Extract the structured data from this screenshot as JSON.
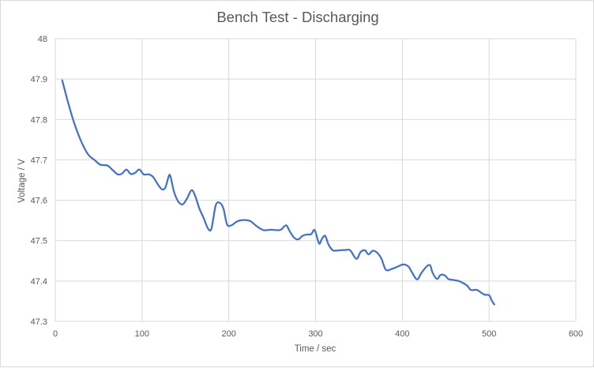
{
  "chart_data": {
    "type": "line",
    "title": "Bench Test - Discharging",
    "xlabel": "Time / sec",
    "ylabel": "Voltage / V",
    "xlim": [
      0,
      600
    ],
    "ylim": [
      47.3,
      48
    ],
    "xticks": [
      0,
      100,
      200,
      300,
      400,
      500,
      600
    ],
    "yticks": [
      47.3,
      47.4,
      47.5,
      47.6,
      47.7,
      47.8,
      47.9,
      48
    ],
    "x_tick_labels": [
      "0",
      "100",
      "200",
      "300",
      "400",
      "500",
      "600"
    ],
    "y_tick_labels": [
      "47.3",
      "47.4",
      "47.5",
      "47.6",
      "47.7",
      "47.8",
      "47.9",
      "48"
    ],
    "grid": "vertical and horizontal",
    "legend": "none",
    "colors": {
      "series": "#4472c4",
      "grid": "#d9d9d9",
      "text": "#595959"
    },
    "series": [
      {
        "values": [
          [
            8,
            47.897
          ],
          [
            15,
            47.84
          ],
          [
            22,
            47.79
          ],
          [
            30,
            47.745
          ],
          [
            38,
            47.713
          ],
          [
            45,
            47.7
          ],
          [
            52,
            47.688
          ],
          [
            60,
            47.686
          ],
          [
            66,
            47.675
          ],
          [
            72,
            47.664
          ],
          [
            77,
            47.666
          ],
          [
            82,
            47.676
          ],
          [
            87,
            47.665
          ],
          [
            92,
            47.668
          ],
          [
            97,
            47.676
          ],
          [
            102,
            47.664
          ],
          [
            108,
            47.664
          ],
          [
            113,
            47.657
          ],
          [
            118,
            47.64
          ],
          [
            123,
            47.627
          ],
          [
            127,
            47.632
          ],
          [
            131,
            47.661
          ],
          [
            133,
            47.657
          ],
          [
            137,
            47.62
          ],
          [
            142,
            47.596
          ],
          [
            147,
            47.59
          ],
          [
            152,
            47.605
          ],
          [
            157,
            47.625
          ],
          [
            161,
            47.612
          ],
          [
            166,
            47.58
          ],
          [
            171,
            47.556
          ],
          [
            176,
            47.53
          ],
          [
            180,
            47.53
          ],
          [
            185,
            47.588
          ],
          [
            190,
            47.593
          ],
          [
            194,
            47.578
          ],
          [
            198,
            47.54
          ],
          [
            203,
            47.538
          ],
          [
            210,
            47.548
          ],
          [
            218,
            47.551
          ],
          [
            225,
            47.548
          ],
          [
            232,
            47.536
          ],
          [
            240,
            47.526
          ],
          [
            248,
            47.527
          ],
          [
            255,
            47.526
          ],
          [
            260,
            47.527
          ],
          [
            266,
            47.538
          ],
          [
            270,
            47.524
          ],
          [
            275,
            47.508
          ],
          [
            280,
            47.503
          ],
          [
            285,
            47.512
          ],
          [
            290,
            47.515
          ],
          [
            295,
            47.516
          ],
          [
            299,
            47.526
          ],
          [
            304,
            47.493
          ],
          [
            307,
            47.503
          ],
          [
            311,
            47.512
          ],
          [
            315,
            47.49
          ],
          [
            320,
            47.476
          ],
          [
            327,
            47.476
          ],
          [
            335,
            47.477
          ],
          [
            340,
            47.476
          ],
          [
            347,
            47.455
          ],
          [
            352,
            47.472
          ],
          [
            357,
            47.476
          ],
          [
            361,
            47.466
          ],
          [
            366,
            47.475
          ],
          [
            371,
            47.47
          ],
          [
            376,
            47.455
          ],
          [
            381,
            47.428
          ],
          [
            388,
            47.43
          ],
          [
            395,
            47.436
          ],
          [
            401,
            47.441
          ],
          [
            407,
            47.436
          ],
          [
            411,
            47.422
          ],
          [
            417,
            47.404
          ],
          [
            422,
            47.42
          ],
          [
            428,
            47.436
          ],
          [
            432,
            47.439
          ],
          [
            435,
            47.42
          ],
          [
            440,
            47.405
          ],
          [
            444,
            47.415
          ],
          [
            449,
            47.414
          ],
          [
            453,
            47.405
          ],
          [
            458,
            47.403
          ],
          [
            465,
            47.4
          ],
          [
            470,
            47.395
          ],
          [
            475,
            47.388
          ],
          [
            479,
            47.378
          ],
          [
            486,
            47.378
          ],
          [
            491,
            47.371
          ],
          [
            495,
            47.366
          ],
          [
            500,
            47.365
          ],
          [
            503,
            47.352
          ],
          [
            506,
            47.342
          ]
        ]
      }
    ]
  }
}
